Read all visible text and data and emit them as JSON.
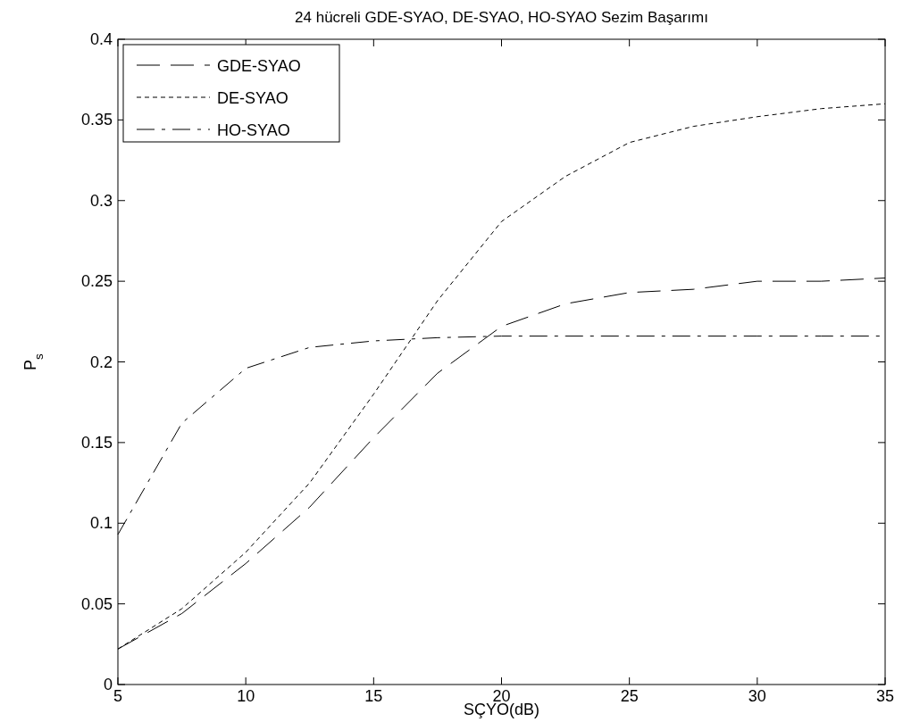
{
  "chart_data": {
    "type": "line",
    "title": "24 hücreli GDE-SYAO, DE-SYAO, HO-SYAO Sezim Başarımı",
    "xlabel": "SÇYO(dB)",
    "ylabel": "P$_{s}$",
    "x": [
      5,
      7.5,
      10,
      12.5,
      15,
      17.5,
      20,
      22.5,
      25,
      27.5,
      30,
      32.5,
      35
    ],
    "series": [
      {
        "name": "GDE-SYAO",
        "color": "#000000",
        "line_style": "longdash",
        "values": [
          0.022,
          0.044,
          0.075,
          0.11,
          0.153,
          0.193,
          0.222,
          0.236,
          0.243,
          0.245,
          0.25,
          0.25,
          0.252
        ]
      },
      {
        "name": "DE-SYAO",
        "color": "#000000",
        "line_style": "dotted",
        "values": [
          0.022,
          0.047,
          0.082,
          0.125,
          0.18,
          0.238,
          0.287,
          0.315,
          0.336,
          0.346,
          0.352,
          0.357,
          0.36
        ]
      },
      {
        "name": "HO-SYAO",
        "color": "#000000",
        "line_style": "dashdot",
        "values": [
          0.093,
          0.162,
          0.196,
          0.209,
          0.213,
          0.215,
          0.216,
          0.216,
          0.216,
          0.216,
          0.216,
          0.216,
          0.216
        ]
      }
    ],
    "xlim": [
      5,
      35
    ],
    "xticks": [
      5,
      10,
      15,
      20,
      25,
      30,
      35
    ],
    "ylim": [
      0,
      0.4
    ],
    "yticks": [
      0,
      0.05,
      0.1,
      0.15,
      0.2,
      0.25,
      0.3,
      0.35,
      0.4
    ],
    "grid": false,
    "legend": "top left"
  }
}
